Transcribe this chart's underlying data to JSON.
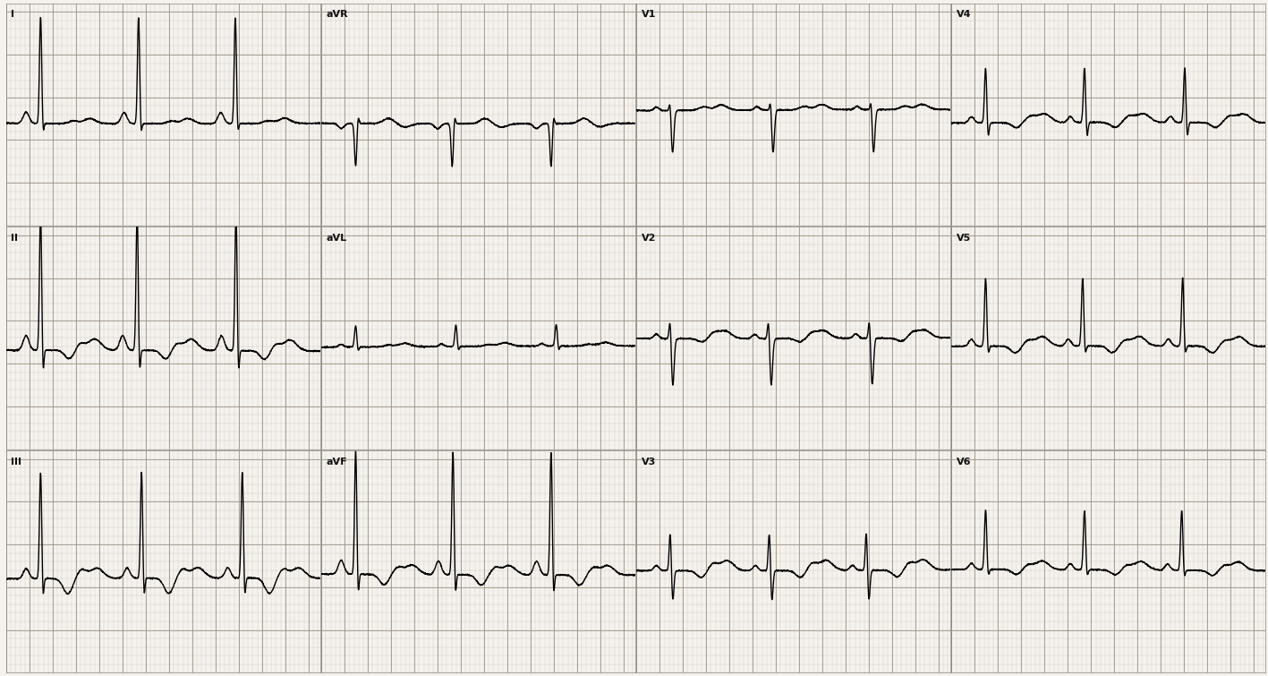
{
  "background_color": "#f0ede8",
  "grid_minor_color": "#c8c0b8",
  "grid_major_color": "#a09890",
  "ecg_color": "#000000",
  "ecg_linewidth": 1.0,
  "fig_width": 14.17,
  "fig_height": 7.55,
  "leads": [
    [
      "I",
      "aVR",
      "V1",
      "V4"
    ],
    [
      "II",
      "aVL",
      "V2",
      "V5"
    ],
    [
      "III",
      "aVF",
      "V3",
      "V6"
    ]
  ],
  "num_rows": 3,
  "num_cols": 4,
  "beat_duration": 0.85,
  "fs": 500,
  "strip_duration": 2.7,
  "ylim": [
    -1.2,
    1.4
  ]
}
